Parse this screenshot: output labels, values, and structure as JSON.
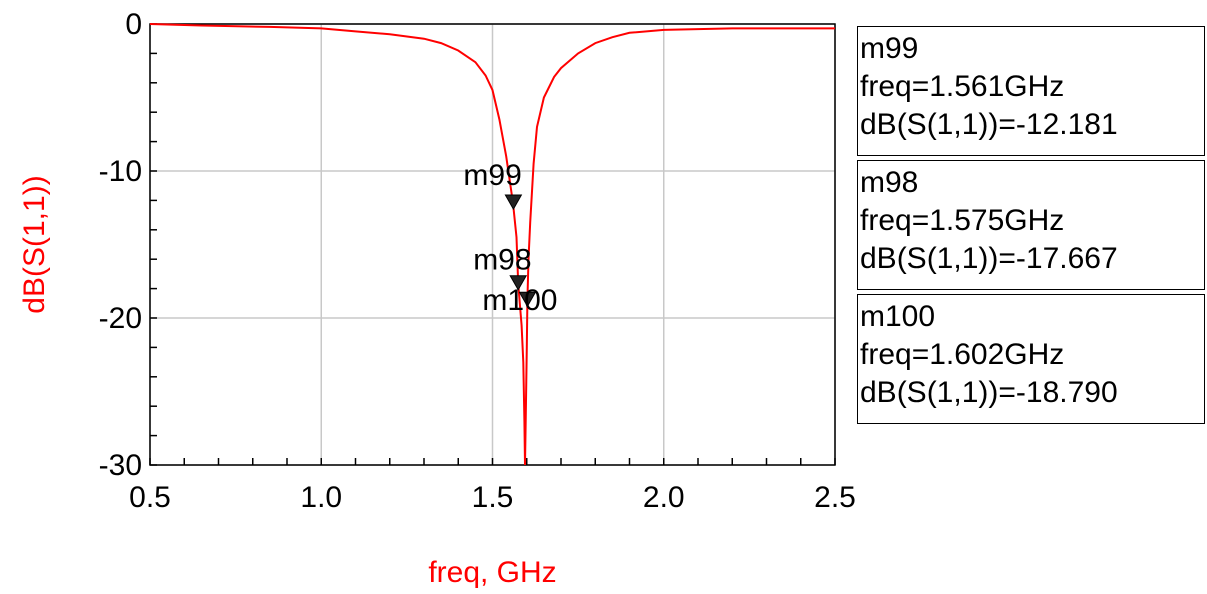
{
  "chart_data": {
    "type": "line",
    "xlabel": "freq, GHz",
    "ylabel": "dB(S(1,1))",
    "xlim": [
      0.5,
      2.5
    ],
    "ylim": [
      -30,
      0
    ],
    "x_ticks": [
      "0.5",
      "1.0",
      "1.5",
      "2.0",
      "2.5"
    ],
    "y_ticks": [
      "0",
      "-10",
      "-20",
      "-30"
    ],
    "grid": true,
    "colors": {
      "series": "#ff0000",
      "axis_title": "#ff0000",
      "axes": "#000000",
      "grid": "#c8c8c8"
    },
    "series": [
      {
        "x": [
          0.5,
          0.65,
          0.85,
          1.0,
          1.1,
          1.2,
          1.3,
          1.35,
          1.4,
          1.45,
          1.48,
          1.5,
          1.52,
          1.54,
          1.56,
          1.57,
          1.575,
          1.585,
          1.59,
          1.593,
          1.595,
          1.597,
          1.6,
          1.602,
          1.605,
          1.61,
          1.615,
          1.62,
          1.63,
          1.65,
          1.68,
          1.7,
          1.75,
          1.8,
          1.85,
          1.9,
          2.0,
          2.2,
          2.5
        ],
        "y": [
          0.0,
          -0.1,
          -0.2,
          -0.3,
          -0.5,
          -0.7,
          -1.0,
          -1.3,
          -1.8,
          -2.6,
          -3.5,
          -4.5,
          -6.5,
          -9.0,
          -12.181,
          -14.5,
          -17.667,
          -20.5,
          -23.0,
          -27.0,
          -30.0,
          -27.0,
          -22.0,
          -18.79,
          -16.0,
          -13.5,
          -11.5,
          -9.5,
          -7.0,
          -5.0,
          -3.6,
          -3.0,
          -2.0,
          -1.3,
          -0.9,
          -0.6,
          -0.4,
          -0.3,
          -0.3
        ]
      }
    ],
    "markers": [
      {
        "name": "m99",
        "freq": 1.561,
        "value": -12.181,
        "lines": [
          "m99",
          "freq=1.561GHz",
          "dB(S(1,1))=-12.181"
        ]
      },
      {
        "name": "m98",
        "freq": 1.575,
        "value": -17.667,
        "lines": [
          "m98",
          "freq=1.575GHz",
          "dB(S(1,1))=-17.667"
        ]
      },
      {
        "name": "m100",
        "freq": 1.602,
        "value": -18.79,
        "lines": [
          "m100",
          "freq=1.602GHz",
          "dB(S(1,1))=-18.790"
        ]
      }
    ]
  }
}
